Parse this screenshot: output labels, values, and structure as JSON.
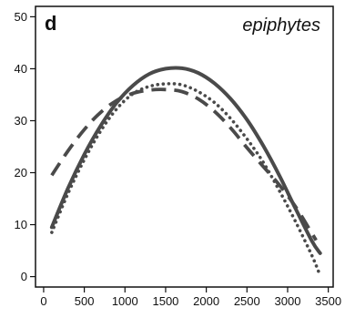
{
  "chart_data": {
    "type": "line",
    "panel_label": "d",
    "title": "epiphytes",
    "xlabel": "",
    "ylabel": "",
    "xlim": [
      -100,
      3560
    ],
    "ylim": [
      -2,
      52
    ],
    "x_ticks": [
      0,
      500,
      1000,
      1500,
      2000,
      2500,
      3000,
      3500
    ],
    "y_ticks": [
      0,
      10,
      20,
      30,
      40,
      50
    ],
    "grid": false,
    "legend": "none",
    "series": [
      {
        "style": "solid",
        "color": "#4a4a4a",
        "x": [
          100,
          300,
          500,
          700,
          900,
          1100,
          1300,
          1500,
          1700,
          1900,
          2100,
          2300,
          2500,
          2700,
          2900,
          3100,
          3300,
          3400
        ],
        "y": [
          9.5,
          17,
          23.5,
          29,
          33.5,
          36.8,
          39,
          40,
          40.1,
          39.2,
          37.2,
          34.2,
          30.2,
          25.2,
          19.4,
          13,
          6.8,
          4.5
        ]
      },
      {
        "style": "dotted",
        "color": "#4a4a4a",
        "x": [
          100,
          300,
          500,
          700,
          900,
          1100,
          1300,
          1500,
          1700,
          1900,
          2100,
          2300,
          2500,
          2700,
          2900,
          3100,
          3300,
          3380
        ],
        "y": [
          8.5,
          16,
          22.5,
          28,
          32.3,
          35.2,
          36.6,
          37.1,
          36.9,
          35.6,
          33.5,
          30.4,
          26.5,
          22,
          16.5,
          10.5,
          4,
          1
        ]
      },
      {
        "style": "dashed",
        "color": "#4a4a4a",
        "x": [
          100,
          300,
          500,
          700,
          900,
          1100,
          1300,
          1500,
          1700,
          1900,
          2100,
          2300,
          2500,
          2700,
          2900,
          3100,
          3300,
          3350
        ],
        "y": [
          19.5,
          24.2,
          28.3,
          31.6,
          33.9,
          35.3,
          35.9,
          36,
          35.6,
          34.2,
          31.8,
          28.6,
          24.8,
          21.2,
          17.6,
          13.4,
          8.3,
          7
        ]
      }
    ]
  }
}
